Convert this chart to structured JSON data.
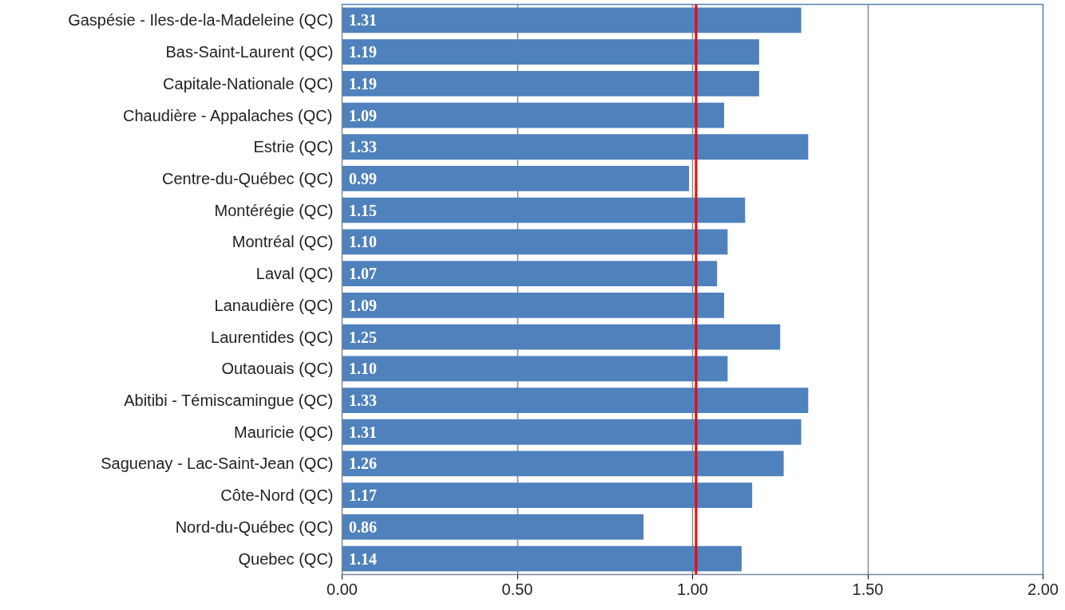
{
  "chart_data": {
    "type": "bar",
    "orientation": "horizontal",
    "categories": [
      "Gaspésie - Iles-de-la-Madeleine (QC)",
      "Bas-Saint-Laurent (QC)",
      "Capitale-Nationale (QC)",
      "Chaudière - Appalaches (QC)",
      "Estrie (QC)",
      "Centre-du-Québec (QC)",
      "Montérégie (QC)",
      "Montréal (QC)",
      "Laval (QC)",
      "Lanaudière (QC)",
      "Laurentides (QC)",
      "Outaouais (QC)",
      "Abitibi - Témiscamingue (QC)",
      "Mauricie (QC)",
      "Saguenay - Lac-Saint-Jean (QC)",
      "Côte-Nord (QC)",
      "Nord-du-Québec (QC)",
      "Quebec (QC)"
    ],
    "values": [
      1.31,
      1.19,
      1.19,
      1.09,
      1.33,
      0.99,
      1.15,
      1.1,
      1.07,
      1.09,
      1.25,
      1.1,
      1.33,
      1.31,
      1.26,
      1.17,
      0.86,
      1.14
    ],
    "value_labels": [
      "1.31",
      "1.19",
      "1.19",
      "1.09",
      "1.33",
      "0.99",
      "1.15",
      "1.10",
      "1.07",
      "1.09",
      "1.25",
      "1.10",
      "1.33",
      "1.31",
      "1.26",
      "1.17",
      "0.86",
      "1.14"
    ],
    "color": "#4f81bd",
    "xlim": [
      0,
      2
    ],
    "xticks": [
      {
        "value": 0,
        "label": "0.00"
      },
      {
        "value": 0.5,
        "label": "0.50"
      },
      {
        "value": 1,
        "label": "1.00"
      },
      {
        "value": 1.5,
        "label": "1.50"
      },
      {
        "value": 2,
        "label": "2.00"
      }
    ],
    "grid": "x",
    "ref_lines": [
      {
        "axis": "x",
        "value": 1.01,
        "label": null,
        "color": "#ff0000"
      }
    ]
  }
}
